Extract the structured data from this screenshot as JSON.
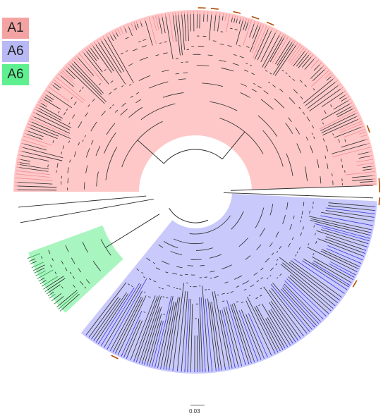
{
  "legend": [
    {
      "label": "A1",
      "color": "#f4a3a3"
    },
    {
      "label": "A6",
      "color": "#b8b8f4"
    },
    {
      "label": "A6",
      "color": "#5ef08f"
    }
  ],
  "scale_bar": {
    "label": "0.03"
  },
  "clades": [
    {
      "name": "A1",
      "fill": "#ffc8c8",
      "branch": "#f08c96"
    },
    {
      "name": "A6",
      "fill": "#c9c9fb",
      "branch": "#3a3ad6"
    },
    {
      "name": "A6",
      "fill": "#a8f5c0",
      "branch": "#2a9c4a"
    }
  ],
  "colors": {
    "branch_base": "#2a2a2a",
    "bracket": "#b34a00"
  }
}
